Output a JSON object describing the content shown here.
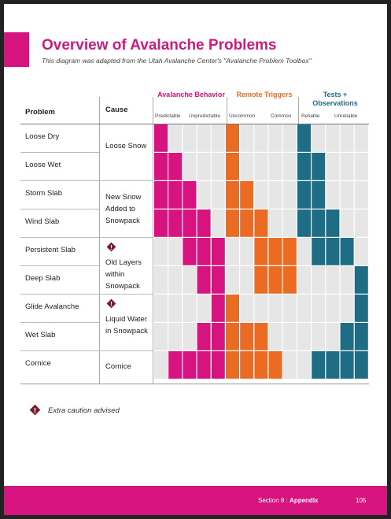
{
  "page": {
    "title": "Overview of Avalanche Problems",
    "subtitle": "This diagram was adapted from the Utah Avalanche Center's \"Avalanche Problem Toolbox\""
  },
  "table": {
    "col_problem": "Problem",
    "col_cause": "Cause",
    "groups": [
      {
        "label": "Avalanche Behavior",
        "color": "#d6137e",
        "left": "Predictable",
        "right": "Unpredictable"
      },
      {
        "label": "Remote Triggers",
        "color": "#ec6b23",
        "left": "Uncommon",
        "right": "Common"
      },
      {
        "label": "Tests + Observations",
        "color": "#1f6d84",
        "left": "Reliable",
        "right": "Unreliable"
      }
    ],
    "problems": [
      "Loose Dry",
      "Loose Wet",
      "Storm Slab",
      "Wind Slab",
      "Persistent Slab",
      "Deep Slab",
      "Glide Avalanche",
      "Wet Slab",
      "Cornice"
    ],
    "causes": [
      {
        "text": "Loose Snow",
        "warning": false
      },
      {
        "text": "New Snow Added to Snowpack",
        "warning": false
      },
      {
        "text": "Old Layers within Snowpack",
        "warning": true
      },
      {
        "text": "Liquid Water in Snowpack",
        "warning": true
      },
      {
        "text": "Cornice",
        "warning": false
      }
    ],
    "filled_cells": [
      {
        "behavior": [
          1,
          0,
          0,
          0,
          0
        ],
        "triggers": [
          1,
          0,
          0,
          0,
          0
        ],
        "tests": [
          1,
          0,
          0,
          0,
          0
        ]
      },
      {
        "behavior": [
          1,
          1,
          0,
          0,
          0
        ],
        "triggers": [
          1,
          0,
          0,
          0,
          0
        ],
        "tests": [
          1,
          1,
          0,
          0,
          0
        ]
      },
      {
        "behavior": [
          1,
          1,
          1,
          0,
          0
        ],
        "triggers": [
          1,
          1,
          0,
          0,
          0
        ],
        "tests": [
          1,
          1,
          0,
          0,
          0
        ]
      },
      {
        "behavior": [
          1,
          1,
          1,
          1,
          0
        ],
        "triggers": [
          1,
          1,
          1,
          0,
          0
        ],
        "tests": [
          1,
          1,
          1,
          0,
          0
        ]
      },
      {
        "behavior": [
          0,
          0,
          1,
          1,
          1
        ],
        "triggers": [
          0,
          0,
          1,
          1,
          1
        ],
        "tests": [
          0,
          1,
          1,
          1,
          0
        ]
      },
      {
        "behavior": [
          0,
          0,
          0,
          1,
          1
        ],
        "triggers": [
          0,
          0,
          1,
          1,
          1
        ],
        "tests": [
          0,
          0,
          0,
          0,
          1
        ]
      },
      {
        "behavior": [
          0,
          0,
          0,
          0,
          1
        ],
        "triggers": [
          1,
          0,
          0,
          0,
          0
        ],
        "tests": [
          0,
          0,
          0,
          0,
          1
        ]
      },
      {
        "behavior": [
          0,
          0,
          0,
          1,
          1
        ],
        "triggers": [
          1,
          1,
          1,
          0,
          0
        ],
        "tests": [
          0,
          0,
          0,
          1,
          1
        ]
      },
      {
        "behavior": [
          0,
          1,
          1,
          1,
          1
        ],
        "triggers": [
          1,
          1,
          1,
          1,
          0
        ],
        "tests": [
          0,
          1,
          1,
          1,
          1
        ]
      }
    ]
  },
  "legend": {
    "text": "Extra caution advised"
  },
  "footer": {
    "section": "Section 8 :",
    "section_name": "Appendix",
    "page_number": "105"
  },
  "colors": {
    "magenta": "#d6137e",
    "orange": "#ec6b23",
    "teal": "#1f6d84",
    "empty": "#e6e6e6"
  }
}
